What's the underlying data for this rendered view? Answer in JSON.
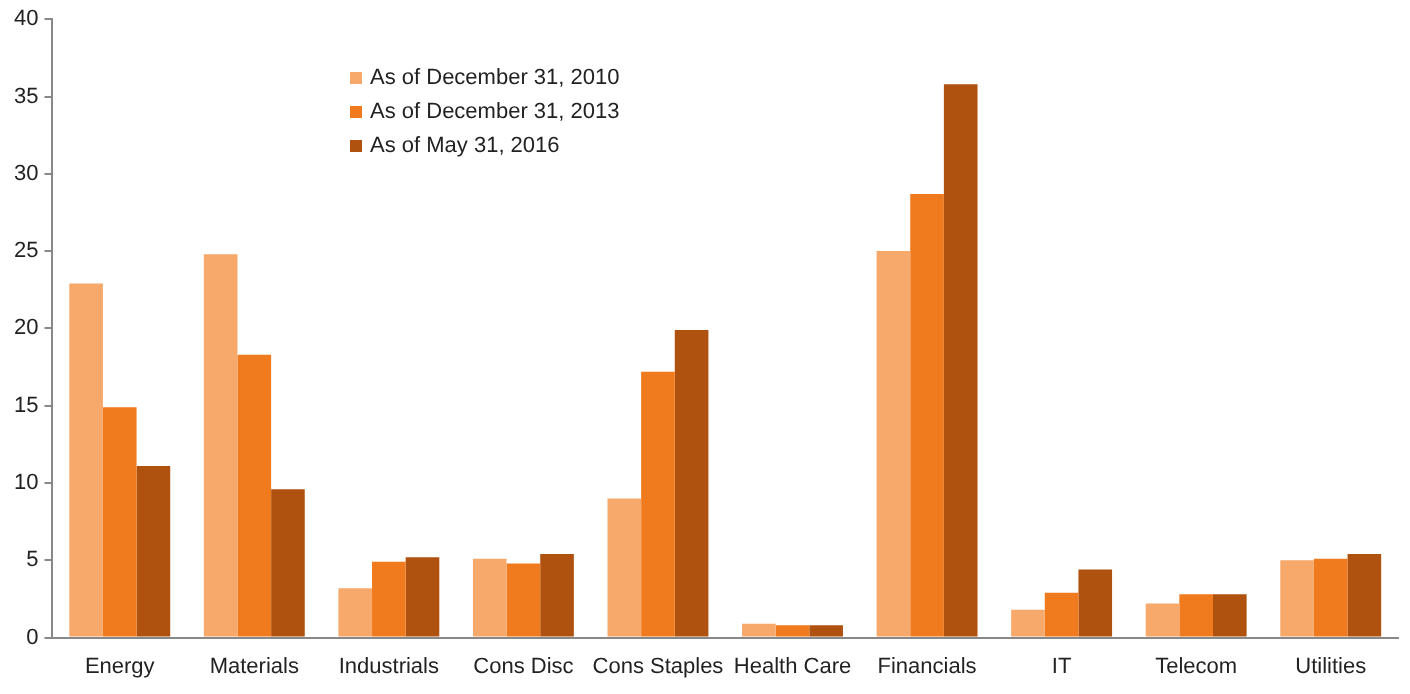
{
  "chart_data": {
    "type": "bar",
    "categories": [
      "Energy",
      "Materials",
      "Industrials",
      "Cons Disc",
      "Cons Staples",
      "Health Care",
      "Financials",
      "IT",
      "Telecom",
      "Utilities"
    ],
    "series": [
      {
        "name": "As of December 31, 2010",
        "color": "#f6a96a",
        "values": [
          22.9,
          24.8,
          3.2,
          5.1,
          9.0,
          0.9,
          25.0,
          1.8,
          2.2,
          5.0
        ]
      },
      {
        "name": "As of December 31, 2013",
        "color": "#f07a1e",
        "values": [
          14.9,
          18.3,
          4.9,
          4.8,
          17.2,
          0.8,
          28.7,
          2.9,
          2.8,
          5.1
        ]
      },
      {
        "name": "As of May 31, 2016",
        "color": "#b0520f",
        "values": [
          11.1,
          9.6,
          5.2,
          5.4,
          19.9,
          0.8,
          35.8,
          4.4,
          2.8,
          5.4
        ]
      }
    ],
    "ylim": [
      0,
      40
    ],
    "yticks": [
      0,
      5,
      10,
      15,
      20,
      25,
      30,
      35,
      40
    ],
    "grid": false,
    "legend": "top"
  }
}
